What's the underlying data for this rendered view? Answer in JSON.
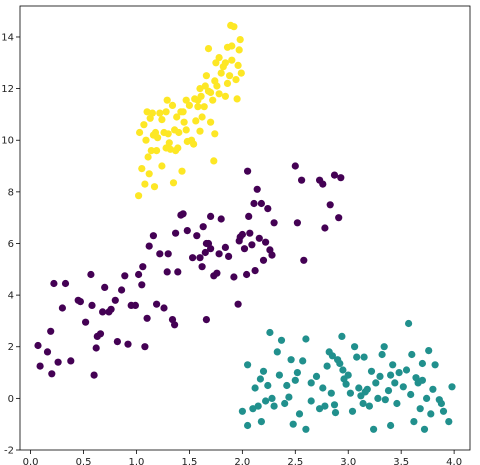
{
  "chart_data": {
    "type": "scatter",
    "title": "",
    "xlabel": "",
    "ylabel": "",
    "xlim": [
      -0.1,
      4.15
    ],
    "ylim": [
      -2,
      15.2
    ],
    "xticks": [
      0.0,
      0.5,
      1.0,
      1.5,
      2.0,
      2.5,
      3.0,
      3.5,
      4.0
    ],
    "xtick_labels": [
      "0.0",
      "0.5",
      "1.0",
      "1.5",
      "2.0",
      "2.5",
      "3.0",
      "3.5",
      "4.0"
    ],
    "yticks": [
      -2,
      0,
      2,
      4,
      6,
      8,
      10,
      12,
      14
    ],
    "ytick_labels": [
      "-2",
      "0",
      "2",
      "4",
      "6",
      "8",
      "10",
      "12",
      "14"
    ],
    "grid": false,
    "legend": "none",
    "series": [
      {
        "color": "#440154",
        "points": [
          [
            0.07,
            2.05
          ],
          [
            0.09,
            1.25
          ],
          [
            0.16,
            1.8
          ],
          [
            0.19,
            2.6
          ],
          [
            0.2,
            0.95
          ],
          [
            0.22,
            4.45
          ],
          [
            0.26,
            1.4
          ],
          [
            0.3,
            3.5
          ],
          [
            0.33,
            4.45
          ],
          [
            0.38,
            1.45
          ],
          [
            0.45,
            3.8
          ],
          [
            0.47,
            3.75
          ],
          [
            0.52,
            2.95
          ],
          [
            0.57,
            4.8
          ],
          [
            0.6,
            0.9
          ],
          [
            0.58,
            3.6
          ],
          [
            0.62,
            1.95
          ],
          [
            0.63,
            2.4
          ],
          [
            0.66,
            2.5
          ],
          [
            0.68,
            3.35
          ],
          [
            0.7,
            4.3
          ],
          [
            0.74,
            3.35
          ],
          [
            0.76,
            3.45
          ],
          [
            0.8,
            3.8
          ],
          [
            0.82,
            2.2
          ],
          [
            0.86,
            4.2
          ],
          [
            0.89,
            4.75
          ],
          [
            0.92,
            2.1
          ],
          [
            0.95,
            3.6
          ],
          [
            0.99,
            3.6
          ],
          [
            1.02,
            4.8
          ],
          [
            1.05,
            4.4
          ],
          [
            1.08,
            2.0
          ],
          [
            1.06,
            5.1
          ],
          [
            1.1,
            3.1
          ],
          [
            1.12,
            5.9
          ],
          [
            1.16,
            6.3
          ],
          [
            1.19,
            3.65
          ],
          [
            1.22,
            5.6
          ],
          [
            1.26,
            3.5
          ],
          [
            1.29,
            4.9
          ],
          [
            1.3,
            5.6
          ],
          [
            1.34,
            3.05
          ],
          [
            1.36,
            2.85
          ],
          [
            1.37,
            6.4
          ],
          [
            1.39,
            4.9
          ],
          [
            1.42,
            7.1
          ],
          [
            1.44,
            7.15
          ],
          [
            1.48,
            6.5
          ],
          [
            1.53,
            5.45
          ],
          [
            1.57,
            6.3
          ],
          [
            1.6,
            5.45
          ],
          [
            1.62,
            5.1
          ],
          [
            1.63,
            6.65
          ],
          [
            1.65,
            5.65
          ],
          [
            1.66,
            6.0
          ],
          [
            1.68,
            6.0
          ],
          [
            1.66,
            3.05
          ],
          [
            1.7,
            5.8
          ],
          [
            1.7,
            7.05
          ],
          [
            1.73,
            4.75
          ],
          [
            1.76,
            4.85
          ],
          [
            1.78,
            5.6
          ],
          [
            1.8,
            6.95
          ],
          [
            1.84,
            5.85
          ],
          [
            1.87,
            5.5
          ],
          [
            1.92,
            4.7
          ],
          [
            1.96,
            3.65
          ],
          [
            1.97,
            6.1
          ],
          [
            1.98,
            6.25
          ],
          [
            2.0,
            6.35
          ],
          [
            2.02,
            5.8
          ],
          [
            2.04,
            4.8
          ],
          [
            2.06,
            7.05
          ],
          [
            2.07,
            6.4
          ],
          [
            2.09,
            5.95
          ],
          [
            2.11,
            7.55
          ],
          [
            2.12,
            4.95
          ],
          [
            2.14,
            8.1
          ],
          [
            2.16,
            6.2
          ],
          [
            2.18,
            7.55
          ],
          [
            2.2,
            5.35
          ],
          [
            2.22,
            6.05
          ],
          [
            2.24,
            7.35
          ],
          [
            2.26,
            5.75
          ],
          [
            2.28,
            5.55
          ],
          [
            2.3,
            6.8
          ],
          [
            2.05,
            8.8
          ],
          [
            2.5,
            9.0
          ],
          [
            2.52,
            6.8
          ],
          [
            2.56,
            8.45
          ],
          [
            2.58,
            5.35
          ],
          [
            2.73,
            8.45
          ],
          [
            2.76,
            8.3
          ],
          [
            2.78,
            6.6
          ],
          [
            2.83,
            7.5
          ],
          [
            2.87,
            8.65
          ],
          [
            2.91,
            7.0
          ],
          [
            2.93,
            8.55
          ]
        ]
      },
      {
        "color": "#21908d",
        "points": [
          [
            2.0,
            -0.5
          ],
          [
            2.05,
            -1.05
          ],
          [
            2.05,
            1.3
          ],
          [
            2.1,
            -0.4
          ],
          [
            2.12,
            0.4
          ],
          [
            2.15,
            -0.3
          ],
          [
            2.17,
            0.75
          ],
          [
            2.18,
            -0.9
          ],
          [
            2.2,
            1.05
          ],
          [
            2.24,
            0.5
          ],
          [
            2.26,
            2.55
          ],
          [
            2.28,
            0.0
          ],
          [
            2.3,
            -0.3
          ],
          [
            2.33,
            1.8
          ],
          [
            2.35,
            0.9
          ],
          [
            2.37,
            2.25
          ],
          [
            2.4,
            -0.2
          ],
          [
            2.42,
            0.5
          ],
          [
            2.44,
            0.05
          ],
          [
            2.46,
            1.5
          ],
          [
            2.48,
            -1.0
          ],
          [
            2.5,
            0.7
          ],
          [
            2.52,
            1.0
          ],
          [
            2.54,
            -0.6
          ],
          [
            2.57,
            1.45
          ],
          [
            2.6,
            2.3
          ],
          [
            2.6,
            -1.2
          ],
          [
            2.65,
            -0.1
          ],
          [
            2.7,
            0.85
          ],
          [
            2.73,
            -0.4
          ],
          [
            2.76,
            0.4
          ],
          [
            2.78,
            -0.3
          ],
          [
            2.8,
            1.25
          ],
          [
            2.82,
            1.8
          ],
          [
            2.84,
            0.2
          ],
          [
            2.85,
            1.65
          ],
          [
            2.87,
            -0.25
          ],
          [
            2.88,
            -0.55
          ],
          [
            2.9,
            1.5
          ],
          [
            2.92,
            1.35
          ],
          [
            2.94,
            2.4
          ],
          [
            2.96,
            0.75
          ],
          [
            2.98,
            0.55
          ],
          [
            3.0,
            0.9
          ],
          [
            3.02,
            0.2
          ],
          [
            3.04,
            -0.5
          ],
          [
            3.06,
            2.0
          ],
          [
            3.08,
            1.6
          ],
          [
            3.1,
            0.4
          ],
          [
            3.12,
            0.1
          ],
          [
            3.14,
            -0.2
          ],
          [
            3.16,
            0.25
          ],
          [
            3.18,
            0.35
          ],
          [
            3.2,
            -0.3
          ],
          [
            3.22,
            1.05
          ],
          [
            3.24,
            -1.2
          ],
          [
            3.26,
            0.6
          ],
          [
            3.28,
            0.0
          ],
          [
            3.3,
            0.85
          ],
          [
            3.32,
            1.7
          ],
          [
            3.35,
            -0.05
          ],
          [
            3.38,
            0.3
          ],
          [
            3.4,
            -1.05
          ],
          [
            3.42,
            1.3
          ],
          [
            3.44,
            0.6
          ],
          [
            3.46,
            -0.2
          ],
          [
            3.48,
            1.0
          ],
          [
            3.52,
            0.45
          ],
          [
            3.55,
            1.1
          ],
          [
            3.57,
            2.9
          ],
          [
            3.59,
            0.15
          ],
          [
            3.6,
            1.7
          ],
          [
            3.62,
            -0.9
          ],
          [
            3.64,
            0.8
          ],
          [
            3.66,
            0.6
          ],
          [
            3.68,
            -0.4
          ],
          [
            3.7,
            1.35
          ],
          [
            3.72,
            -1.2
          ],
          [
            3.74,
            0.0
          ],
          [
            3.76,
            1.85
          ],
          [
            3.78,
            -0.6
          ],
          [
            3.8,
            0.35
          ],
          [
            3.82,
            1.3
          ],
          [
            3.86,
            -0.05
          ],
          [
            3.88,
            -0.2
          ],
          [
            3.9,
            -0.5
          ],
          [
            3.95,
            -0.9
          ],
          [
            3.98,
            0.45
          ],
          [
            2.95,
            1.1
          ],
          [
            3.4,
            0.9
          ],
          [
            3.34,
            2.0
          ],
          [
            2.22,
            -0.1
          ],
          [
            2.65,
            0.6
          ],
          [
            3.15,
            1.6
          ],
          [
            3.7,
            0.7
          ]
        ]
      },
      {
        "color": "#fde725",
        "points": [
          [
            1.02,
            7.85
          ],
          [
            1.03,
            10.3
          ],
          [
            1.05,
            8.9
          ],
          [
            1.07,
            10.6
          ],
          [
            1.08,
            8.3
          ],
          [
            1.09,
            10.0
          ],
          [
            1.1,
            11.1
          ],
          [
            1.11,
            9.35
          ],
          [
            1.12,
            8.7
          ],
          [
            1.13,
            10.85
          ],
          [
            1.15,
            11.05
          ],
          [
            1.16,
            10.2
          ],
          [
            1.17,
            8.2
          ],
          [
            1.19,
            9.6
          ],
          [
            1.2,
            10.1
          ],
          [
            1.22,
            11.05
          ],
          [
            1.24,
            9.0
          ],
          [
            1.26,
            10.3
          ],
          [
            1.28,
            9.7
          ],
          [
            1.29,
            11.55
          ],
          [
            1.3,
            10.25
          ],
          [
            1.32,
            9.65
          ],
          [
            1.34,
            11.35
          ],
          [
            1.35,
            8.35
          ],
          [
            1.37,
            9.6
          ],
          [
            1.38,
            10.9
          ],
          [
            1.4,
            10.3
          ],
          [
            1.42,
            11.1
          ],
          [
            1.43,
            8.8
          ],
          [
            1.45,
            10.7
          ],
          [
            1.47,
            11.55
          ],
          [
            1.48,
            9.95
          ],
          [
            1.5,
            11.35
          ],
          [
            1.52,
            10.0
          ],
          [
            1.54,
            9.85
          ],
          [
            1.56,
            10.75
          ],
          [
            1.58,
            11.55
          ],
          [
            1.6,
            10.35
          ],
          [
            1.62,
            10.9
          ],
          [
            1.64,
            11.3
          ],
          [
            1.66,
            12.5
          ],
          [
            1.68,
            11.9
          ],
          [
            1.7,
            10.7
          ],
          [
            1.72,
            11.55
          ],
          [
            1.73,
            9.2
          ],
          [
            1.74,
            10.25
          ],
          [
            1.76,
            12.1
          ],
          [
            1.78,
            11.8
          ],
          [
            1.8,
            12.6
          ],
          [
            1.82,
            12.85
          ],
          [
            1.84,
            11.7
          ],
          [
            1.86,
            13.6
          ],
          [
            1.88,
            12.5
          ],
          [
            1.89,
            14.45
          ],
          [
            1.9,
            13.1
          ],
          [
            1.92,
            14.4
          ],
          [
            1.94,
            12.35
          ],
          [
            1.95,
            11.6
          ],
          [
            1.97,
            13.5
          ],
          [
            1.98,
            13.9
          ],
          [
            1.99,
            12.6
          ],
          [
            1.68,
            13.55
          ],
          [
            1.75,
            13.0
          ],
          [
            1.65,
            12.1
          ],
          [
            1.6,
            12.0
          ],
          [
            1.58,
            11.3
          ],
          [
            1.44,
            11.1
          ],
          [
            1.36,
            10.4
          ],
          [
            1.28,
            11.1
          ],
          [
            1.18,
            10.3
          ],
          [
            1.14,
            9.6
          ],
          [
            1.9,
            13.65
          ],
          [
            1.78,
            13.2
          ],
          [
            1.86,
            12.2
          ],
          [
            1.7,
            11.85
          ],
          [
            1.55,
            11.6
          ],
          [
            1.39,
            9.7
          ],
          [
            1.24,
            10.8
          ],
          [
            1.31,
            9.9
          ],
          [
            1.47,
            10.4
          ],
          [
            1.61,
            11.7
          ],
          [
            1.74,
            12.3
          ],
          [
            1.84,
            13.0
          ],
          [
            1.96,
            12.9
          ]
        ]
      }
    ]
  }
}
